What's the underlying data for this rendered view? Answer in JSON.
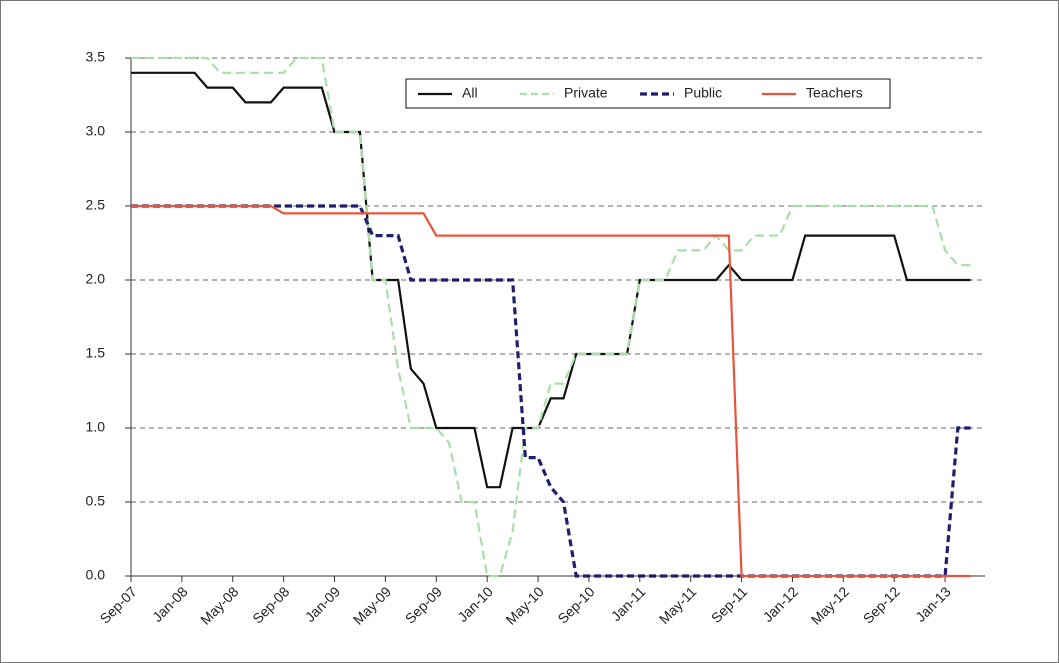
{
  "chart_data": {
    "type": "line",
    "categories": [
      "Sep-07",
      null,
      null,
      null,
      "Jan-08",
      null,
      null,
      null,
      "May-08",
      null,
      null,
      null,
      "Sep-08",
      null,
      null,
      null,
      "Jan-09",
      null,
      null,
      null,
      "May-09",
      null,
      null,
      null,
      "Sep-09",
      null,
      null,
      null,
      "Jan-10",
      null,
      null,
      null,
      "May-10",
      null,
      null,
      null,
      "Sep-10",
      null,
      null,
      null,
      "Jan-11",
      null,
      null,
      null,
      "May-11",
      null,
      null,
      null,
      "Sep-11",
      null,
      null,
      null,
      "Jan-12",
      null,
      null,
      null,
      "May-12",
      null,
      null,
      null,
      "Sep-12",
      null,
      null,
      null,
      "Jan-13",
      null,
      null
    ],
    "series": [
      {
        "name": "All",
        "color": "#111111",
        "style": "solid",
        "values": [
          3.4,
          3.4,
          3.4,
          3.4,
          3.4,
          3.4,
          3.3,
          3.3,
          3.3,
          3.2,
          3.2,
          3.2,
          3.3,
          3.3,
          3.3,
          3.3,
          3.0,
          3.0,
          3.0,
          2.0,
          2.0,
          2.0,
          1.4,
          1.3,
          1.0,
          1.0,
          1.0,
          1.0,
          0.6,
          0.6,
          1.0,
          1.0,
          1.0,
          1.2,
          1.2,
          1.5,
          1.5,
          1.5,
          1.5,
          1.5,
          2.0,
          2.0,
          2.0,
          2.0,
          2.0,
          2.0,
          2.0,
          2.1,
          2.0,
          2.0,
          2.0,
          2.0,
          2.0,
          2.3,
          2.3,
          2.3,
          2.3,
          2.3,
          2.3,
          2.3,
          2.3,
          2.0,
          2.0,
          2.0,
          2.0,
          2.0,
          2.0
        ]
      },
      {
        "name": "Private",
        "color": "#a8e0a8",
        "style": "dashed",
        "values": [
          3.5,
          3.5,
          3.5,
          3.5,
          3.5,
          3.5,
          3.5,
          3.4,
          3.4,
          3.4,
          3.4,
          3.4,
          3.4,
          3.5,
          3.5,
          3.5,
          3.0,
          3.0,
          3.0,
          2.0,
          2.0,
          1.4,
          1.0,
          1.0,
          1.0,
          0.9,
          0.5,
          0.5,
          0.0,
          0.0,
          0.3,
          1.0,
          1.0,
          1.3,
          1.3,
          1.5,
          1.5,
          1.5,
          1.5,
          1.5,
          2.0,
          2.0,
          2.0,
          2.2,
          2.2,
          2.2,
          2.3,
          2.2,
          2.2,
          2.3,
          2.3,
          2.3,
          2.5,
          2.5,
          2.5,
          2.5,
          2.5,
          2.5,
          2.5,
          2.5,
          2.5,
          2.5,
          2.5,
          2.5,
          2.2,
          2.1,
          2.1
        ]
      },
      {
        "name": "Public",
        "color": "#1f1f6e",
        "style": "dashed",
        "values": [
          2.5,
          2.5,
          2.5,
          2.5,
          2.5,
          2.5,
          2.5,
          2.5,
          2.5,
          2.5,
          2.5,
          2.5,
          2.5,
          2.5,
          2.5,
          2.5,
          2.5,
          2.5,
          2.5,
          2.3,
          2.3,
          2.3,
          2.0,
          2.0,
          2.0,
          2.0,
          2.0,
          2.0,
          2.0,
          2.0,
          2.0,
          0.8,
          0.8,
          0.6,
          0.5,
          0.0,
          0.0,
          0.0,
          0.0,
          0.0,
          0.0,
          0.0,
          0.0,
          0.0,
          0.0,
          0.0,
          0.0,
          0.0,
          0.0,
          0.0,
          0.0,
          0.0,
          0.0,
          0.0,
          0.0,
          0.0,
          0.0,
          0.0,
          0.0,
          0.0,
          0.0,
          0.0,
          0.0,
          0.0,
          0.0,
          1.0,
          1.0
        ]
      },
      {
        "name": "Teachers",
        "color": "#e8553c",
        "style": "solid",
        "values": [
          2.5,
          2.5,
          2.5,
          2.5,
          2.5,
          2.5,
          2.5,
          2.5,
          2.5,
          2.5,
          2.5,
          2.5,
          2.45,
          2.45,
          2.45,
          2.45,
          2.45,
          2.45,
          2.45,
          2.45,
          2.45,
          2.45,
          2.45,
          2.45,
          2.3,
          2.3,
          2.3,
          2.3,
          2.3,
          2.3,
          2.3,
          2.3,
          2.3,
          2.3,
          2.3,
          2.3,
          2.3,
          2.3,
          2.3,
          2.3,
          2.3,
          2.3,
          2.3,
          2.3,
          2.3,
          2.3,
          2.3,
          2.3,
          0,
          0,
          0,
          0,
          0,
          0,
          0,
          0,
          0,
          0,
          0,
          0,
          0,
          0,
          0,
          0,
          0,
          0,
          0
        ]
      }
    ],
    "ylim": [
      0,
      3.5
    ],
    "yticks": [
      {
        "value": 0,
        "label": "0.0"
      },
      0.5,
      {
        "value": 1,
        "label": "1.0"
      },
      1.5,
      {
        "value": 2,
        "label": "2.0"
      },
      2.5,
      {
        "value": 3,
        "label": "3.0"
      },
      3.5
    ],
    "grid": true
  }
}
